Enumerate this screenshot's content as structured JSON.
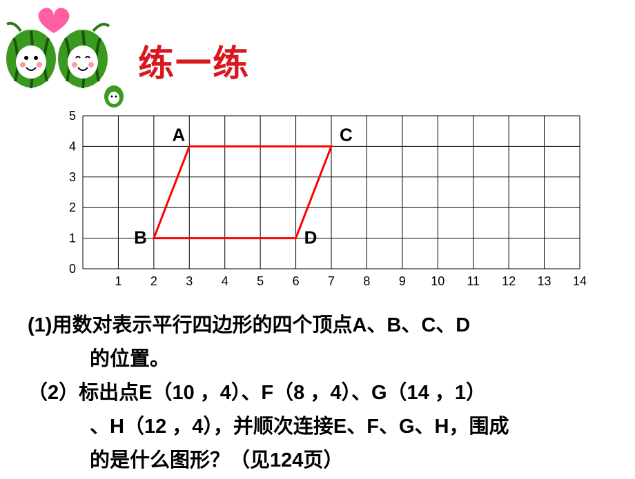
{
  "title": "练一练",
  "chart": {
    "type": "grid",
    "x": {
      "min": 0,
      "max": 14,
      "ticks": [
        1,
        2,
        3,
        4,
        5,
        6,
        7,
        8,
        9,
        10,
        11,
        12,
        13,
        14
      ]
    },
    "y": {
      "min": 0,
      "max": 5,
      "ticks": [
        0,
        1,
        2,
        3,
        4,
        5
      ]
    },
    "grid_color": "#000000",
    "grid_stroke": 1,
    "background": "#ffffff",
    "tick_fontsize": 18,
    "tick_color": "#000000",
    "label_fontsize": 26,
    "label_color": "#000000",
    "label_weight": "bold",
    "shape_stroke": "#ff0000",
    "shape_width": 3,
    "points": {
      "A": {
        "x": 3,
        "y": 4
      },
      "B": {
        "x": 2,
        "y": 1
      },
      "C": {
        "x": 7,
        "y": 4
      },
      "D": {
        "x": 6,
        "y": 1
      }
    },
    "polyline_order": [
      "A",
      "C",
      "D",
      "B",
      "A"
    ]
  },
  "q1_prefix": "(1)",
  "q1_text": "用数对表示平行四边形的四个顶点A、B、C、D",
  "q1_line2": "的位置。",
  "q2_prefix": "（2）",
  "q2_text": "标出点E（10 ，4）、F（8 ，4）、G（14 ，1）",
  "q2_line2": "、H（12 ，4），并顺次连接E、F、G、H，围成",
  "q2_line3": "的是什么图形？（见124页）",
  "mascot": {
    "body_color": "#3a9a1f",
    "stripe_color": "#18560c",
    "face_color": "#ffffff",
    "heart_color": "#ff5fa2",
    "blush_color": "#ff9aa8"
  }
}
